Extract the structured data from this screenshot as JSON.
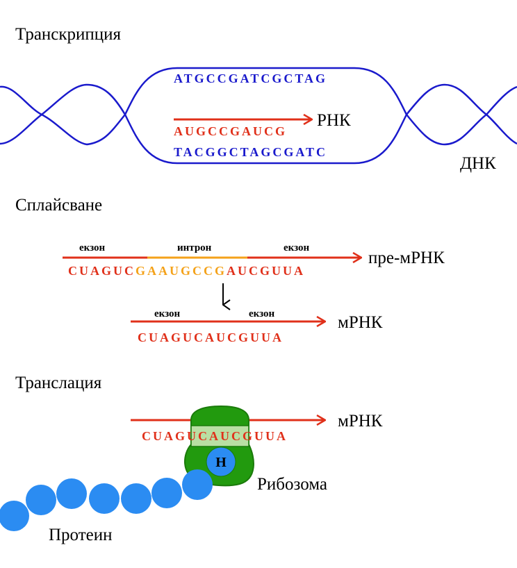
{
  "sections": {
    "transcription": "Транскрипция",
    "splicing": "Сплайсване",
    "translation": "Транслация"
  },
  "transcription": {
    "dna_top_strand": "ATGCCGATCGCTAG",
    "rna_strand": "AUGCCGAUCG",
    "dna_bottom_strand": "TACGGCTAGCGATC",
    "rna_label": "РНК",
    "dna_label": "ДНК"
  },
  "splicing": {
    "exon1_label": "екзон",
    "intron_label": "интрон",
    "exon2_label": "екзон",
    "pre_mrna_label": "пре-мРНК",
    "pre_seq_exon1": "CUAGUC",
    "pre_seq_intron": "GAAUGCCG",
    "pre_seq_exon2": "AUCGUUA",
    "mrna_exon1_label": "екзон",
    "mrna_exon2_label": "екзон",
    "mrna_seq": "CUAGUCAUCGUUA",
    "mrna_label": "мРНК"
  },
  "translation": {
    "mrna_label": "мРНК",
    "seq_left": "CUAG",
    "seq_middle": "UCAUC",
    "seq_right": "GUUA",
    "ribosome_label": "Рибозома",
    "protein_label": "Протеин",
    "trna_letter": "H"
  },
  "colors": {
    "dna_blue": "#1a1acc",
    "rna_red": "#e0301a",
    "intron_orange": "#f4a21a",
    "ribosome_green": "#229a0e",
    "ribosome_dark_green": "#1a7a0a",
    "protein_blue": "#2b8cf2"
  }
}
